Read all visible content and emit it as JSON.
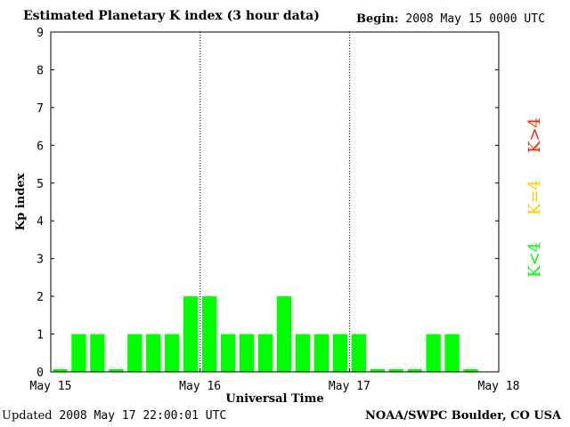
{
  "header": {
    "title": "Estimated Planetary K index (3 hour data)",
    "begin_label": "Begin:",
    "begin_value": "2008 May 15 0000 UTC"
  },
  "footer": {
    "updated_label": "Updated",
    "updated_value": "2008 May 17 22:00:01 UTC",
    "credit": "NOAA/SWPC Boulder, CO USA"
  },
  "legend": [
    {
      "label": "K>4",
      "color": "#ff2200"
    },
    {
      "label": "K=4",
      "color": "#ffcc00"
    },
    {
      "label": "K<4",
      "color": "#00ff00"
    }
  ],
  "chart_data": {
    "type": "bar",
    "title": "Estimated Planetary K index (3 hour data)",
    "xlabel": "Universal Time",
    "ylabel": "Kp index",
    "ylim": [
      0,
      9
    ],
    "yticks": [
      0,
      1,
      2,
      3,
      4,
      5,
      6,
      7,
      8,
      9
    ],
    "x_tick_labels": [
      "May 15",
      "May 16",
      "May 17",
      "May 18"
    ],
    "day_dividers": [
      "May 16",
      "May 17"
    ],
    "bar_color": "#00ff00",
    "categories": [
      "May 15 00",
      "May 15 03",
      "May 15 06",
      "May 15 09",
      "May 15 12",
      "May 15 15",
      "May 15 18",
      "May 15 21",
      "May 16 00",
      "May 16 03",
      "May 16 06",
      "May 16 09",
      "May 16 12",
      "May 16 15",
      "May 16 18",
      "May 16 21",
      "May 17 00",
      "May 17 03",
      "May 17 06",
      "May 17 09",
      "May 17 12",
      "May 17 15",
      "May 17 18",
      "May 17 21"
    ],
    "values": [
      0,
      1,
      1,
      0,
      1,
      1,
      1,
      2,
      2,
      1,
      1,
      1,
      2,
      1,
      1,
      1,
      1,
      0,
      0,
      0,
      1,
      1,
      0,
      null
    ]
  }
}
